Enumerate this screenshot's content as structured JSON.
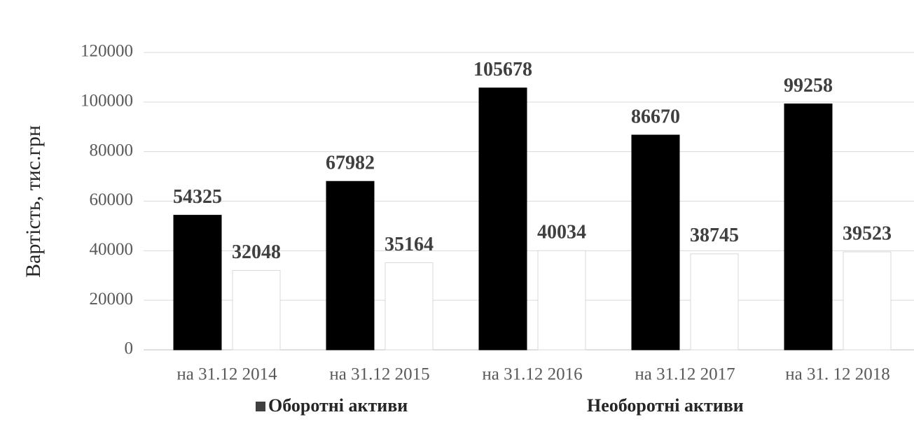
{
  "chart_data": {
    "type": "bar",
    "y_label": "Вартість, тис.грн",
    "categories": [
      "на 31.12 2014",
      "на 31.12 2015",
      "на 31.12 2016",
      "на 31.12 2017",
      "на 31. 12 2018"
    ],
    "series": [
      {
        "name": "Оборотні активи",
        "color": "#000000",
        "values": [
          54325,
          67982,
          105678,
          86670,
          99258
        ]
      },
      {
        "name": "Необоротні активи",
        "color": "#ffffff",
        "values": [
          32048,
          35164,
          40034,
          38745,
          39523
        ]
      }
    ],
    "ylim": [
      0,
      120000
    ],
    "yticks": [
      0,
      20000,
      40000,
      60000,
      80000,
      100000,
      120000
    ],
    "grid": true,
    "legend": "bottom"
  }
}
